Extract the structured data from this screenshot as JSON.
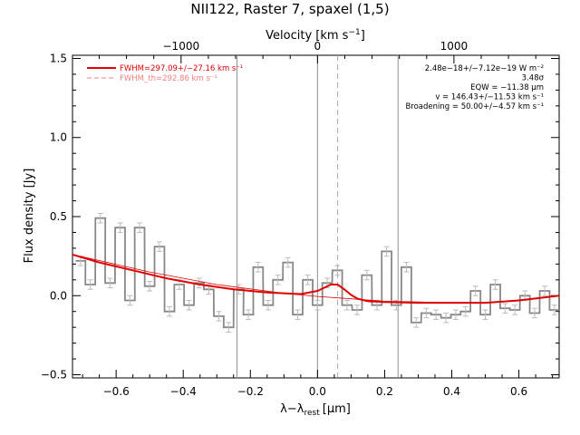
{
  "chart_data": {
    "type": "line",
    "title": "NII122, Raster 7, spaxel (1,5)",
    "xlabel": "λ−λrest [μm]",
    "xlabel_parts": {
      "lambda": "λ",
      "minus": "−",
      "lambda2": "λ",
      "sub": "rest",
      "unit": "[μm]"
    },
    "ylabel": "Flux density [Jy]",
    "top_xlabel": "Velocity [km s⁻¹]",
    "top_xlabel_parts": {
      "base": "Velocity [km s",
      "sup": "−1",
      "close": "]"
    },
    "xlim": [
      -0.73,
      0.72
    ],
    "ylim": [
      -0.52,
      1.52
    ],
    "x_ticks": [
      -0.6,
      -0.4,
      -0.2,
      0.0,
      0.2,
      0.4,
      0.6
    ],
    "x_tick_labels": [
      "−0.6",
      "−0.4",
      "−0.2",
      "0.0",
      "0.2",
      "0.4",
      "0.6"
    ],
    "y_ticks": [
      -0.5,
      0.0,
      0.5,
      1.0,
      1.5
    ],
    "y_tick_labels": [
      "−0.5",
      "0.0",
      "0.5",
      "1.0",
      "1.5"
    ],
    "velocity_ticks": [
      -1000,
      0,
      1000
    ],
    "velocity_tick_labels": [
      "−1000",
      "0",
      "1000"
    ],
    "velocity_per_um": 2460,
    "vertical_lines": [
      {
        "x": -0.24,
        "style": "solid"
      },
      {
        "x": 0.0,
        "style": "solid"
      },
      {
        "x": 0.06,
        "style": "dashed"
      },
      {
        "x": 0.24,
        "style": "solid"
      }
    ],
    "legend": {
      "placement": "top-left",
      "entries": [
        {
          "name": "FWHM=297.09+/−27.16 km s⁻¹",
          "style": "solid",
          "color": "#e00000"
        },
        {
          "name": "FWHM_th=292.86 km s⁻¹",
          "style": "dashed",
          "color": "#f08080"
        }
      ]
    },
    "annotations": {
      "placement": "top-right",
      "lines": [
        "2.48e−18+/−7.12e−19 W m⁻²",
        "3.48σ",
        "EQW = −11.38 μm",
        "v = 146.43+/−11.53 km s⁻¹",
        "Broadening = 50.00+/−4.57 km s⁻¹"
      ]
    },
    "series": [
      {
        "style": "steps",
        "color": "#888888",
        "bin_width": 0.0294,
        "x": [
          -0.706,
          -0.677,
          -0.647,
          -0.618,
          -0.588,
          -0.559,
          -0.53,
          -0.5,
          -0.471,
          -0.441,
          -0.412,
          -0.383,
          -0.353,
          -0.324,
          -0.294,
          -0.265,
          -0.235,
          -0.206,
          -0.177,
          -0.147,
          -0.118,
          -0.088,
          -0.059,
          -0.029,
          0.0,
          0.029,
          0.059,
          0.088,
          0.118,
          0.147,
          0.177,
          0.206,
          0.235,
          0.265,
          0.294,
          0.324,
          0.353,
          0.383,
          0.412,
          0.441,
          0.471,
          0.5,
          0.53,
          0.559,
          0.588,
          0.618,
          0.647,
          0.677,
          0.706
        ],
        "values": [
          0.22,
          0.07,
          0.49,
          0.08,
          0.43,
          -0.03,
          0.43,
          0.06,
          0.31,
          -0.1,
          0.07,
          -0.06,
          0.08,
          0.04,
          -0.13,
          -0.2,
          0.04,
          -0.12,
          0.18,
          -0.06,
          0.1,
          0.21,
          -0.12,
          0.1,
          -0.06,
          0.08,
          0.16,
          -0.06,
          -0.09,
          0.13,
          -0.06,
          0.28,
          -0.06,
          0.18,
          -0.17,
          -0.11,
          -0.12,
          -0.14,
          -0.12,
          -0.1,
          0.03,
          -0.12,
          0.07,
          -0.08,
          -0.09,
          0.0,
          -0.11,
          0.03,
          -0.09
        ],
        "error": 0.03
      },
      {
        "style": "line",
        "color": "#e00000",
        "x": [
          -0.73,
          -0.65,
          -0.55,
          -0.45,
          -0.35,
          -0.25,
          -0.15,
          -0.1,
          -0.05,
          0.0,
          0.02,
          0.04,
          0.06,
          0.08,
          0.1,
          0.12,
          0.15,
          0.2,
          0.3,
          0.4,
          0.5,
          0.6,
          0.72
        ],
        "values": [
          0.26,
          0.21,
          0.16,
          0.11,
          0.07,
          0.04,
          0.02,
          0.015,
          0.01,
          0.03,
          0.05,
          0.07,
          0.07,
          0.04,
          0.005,
          -0.02,
          -0.035,
          -0.04,
          -0.045,
          -0.045,
          -0.045,
          -0.03,
          0.0
        ]
      },
      {
        "style": "line",
        "color": "#e00000",
        "width": "thin",
        "x": [
          -0.73,
          -0.5,
          -0.3,
          -0.1,
          0.0,
          0.1,
          0.2,
          0.3,
          0.4,
          0.5,
          0.6,
          0.72
        ],
        "values": [
          0.26,
          0.15,
          0.07,
          0.015,
          -0.005,
          -0.02,
          -0.035,
          -0.04,
          -0.045,
          -0.045,
          -0.03,
          0.0
        ]
      }
    ]
  }
}
